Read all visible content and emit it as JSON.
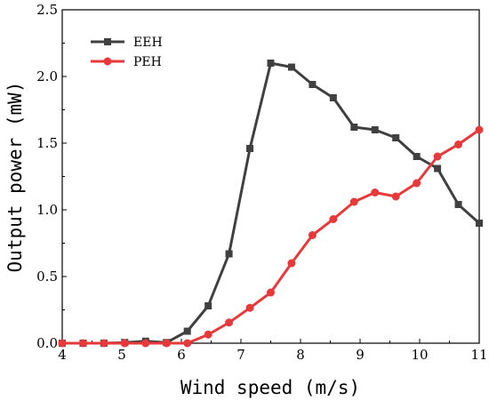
{
  "chart_data": {
    "type": "line",
    "xlabel": "Wind speed (m/s)",
    "ylabel": "Output power (mW)",
    "xlim": [
      4,
      11
    ],
    "ylim": [
      0,
      2.5
    ],
    "x_ticks": [
      4,
      5,
      6,
      7,
      8,
      9,
      10,
      11
    ],
    "y_ticks": [
      0.0,
      0.5,
      1.0,
      1.5,
      2.0,
      2.5
    ],
    "x_tick_labels": [
      "4",
      "5",
      "6",
      "7",
      "8",
      "9",
      "10",
      "11"
    ],
    "y_tick_labels": [
      "0.0",
      "0.5",
      "1.0",
      "1.5",
      "2.0",
      "2.5"
    ],
    "grid": false,
    "legend_position": "top-left",
    "series": [
      {
        "name": "EEH",
        "color": "#404040",
        "marker": "square",
        "x": [
          4.0,
          4.35,
          4.7,
          5.05,
          5.4,
          5.75,
          6.1,
          6.45,
          6.8,
          7.15,
          7.5,
          7.85,
          8.2,
          8.55,
          8.9,
          9.25,
          9.6,
          9.95,
          10.3,
          10.65,
          11.0
        ],
        "y": [
          0.0,
          0.0,
          0.0,
          0.005,
          0.015,
          0.005,
          0.09,
          0.28,
          0.67,
          1.46,
          2.1,
          2.07,
          1.94,
          1.84,
          1.62,
          1.6,
          1.54,
          1.4,
          1.31,
          1.04,
          0.9
        ]
      },
      {
        "name": "PEH",
        "color": "#e8393a",
        "marker": "circle",
        "x": [
          4.0,
          4.35,
          4.7,
          5.05,
          5.4,
          5.75,
          6.1,
          6.45,
          6.8,
          7.15,
          7.5,
          7.85,
          8.2,
          8.55,
          8.9,
          9.25,
          9.6,
          9.95,
          10.3,
          10.65,
          11.0
        ],
        "y": [
          0.0,
          0.0,
          0.0,
          0.0,
          0.0,
          0.0,
          0.0,
          0.065,
          0.155,
          0.265,
          0.38,
          0.6,
          0.81,
          0.93,
          1.06,
          1.13,
          1.1,
          1.2,
          1.4,
          1.49,
          1.6
        ]
      }
    ]
  }
}
